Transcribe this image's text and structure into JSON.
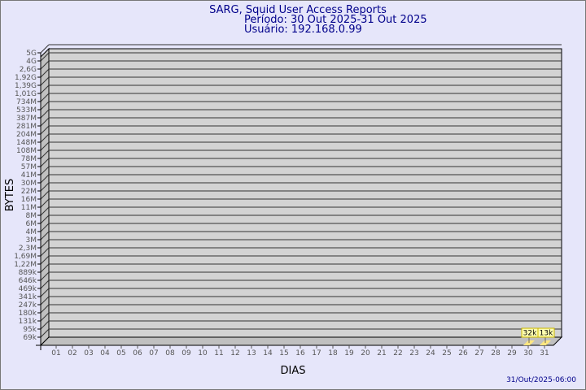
{
  "chart_data": {
    "type": "bar",
    "title": [
      "SARG, Squid User Access Reports",
      "Período: 30 Out 2025-31 Out 2025",
      "Usuário: 192.168.0.99"
    ],
    "xlabel": "DIAS",
    "ylabel": "BYTES",
    "y_scale": "log",
    "y_tick_labels": [
      "5G",
      "4G",
      "2,6G",
      "1,92G",
      "1,39G",
      "1,01G",
      "734M",
      "533M",
      "387M",
      "281M",
      "204M",
      "148M",
      "108M",
      "78M",
      "57M",
      "41M",
      "30M",
      "22M",
      "16M",
      "11M",
      "8M",
      "6M",
      "4M",
      "3M",
      "2,3M",
      "1,69M",
      "1,22M",
      "889k",
      "646k",
      "469k",
      "341k",
      "247k",
      "180k",
      "131k",
      "95k",
      "69k"
    ],
    "categories": [
      "01",
      "02",
      "03",
      "04",
      "05",
      "06",
      "07",
      "08",
      "09",
      "10",
      "11",
      "12",
      "13",
      "14",
      "15",
      "16",
      "17",
      "18",
      "19",
      "20",
      "21",
      "22",
      "23",
      "24",
      "25",
      "26",
      "27",
      "28",
      "29",
      "30",
      "31"
    ],
    "bars": [
      {
        "day": "30",
        "value": 32000,
        "label": "32k"
      },
      {
        "day": "31",
        "value": 13000,
        "label": "13k"
      }
    ],
    "grid": true,
    "colors": {
      "title": "#00008b",
      "bar": "#ffe680",
      "wall": "#d3d3d3",
      "background": "#e6e6fa"
    }
  },
  "footer": {
    "timestamp": "31/Out/2025-06:00"
  }
}
